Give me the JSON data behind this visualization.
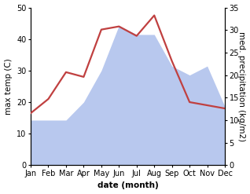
{
  "months": [
    "Jan",
    "Feb",
    "Mar",
    "Apr",
    "May",
    "Jun",
    "Jul",
    "Aug",
    "Sep",
    "Oct",
    "Nov",
    "Dec"
  ],
  "x": [
    0,
    1,
    2,
    3,
    4,
    5,
    6,
    7,
    8,
    9,
    10,
    11
  ],
  "max_temp": [
    16.5,
    21,
    29.5,
    28,
    43,
    44,
    41,
    47.5,
    33,
    20,
    19,
    18
  ],
  "precipitation": [
    10,
    10,
    10,
    14,
    21,
    31,
    29,
    29,
    22,
    20,
    22,
    13
  ],
  "temp_color": "#c04040",
  "precip_color": "#b8c8ee",
  "left_ylim": [
    0,
    50
  ],
  "right_ylim": [
    0,
    35
  ],
  "left_yticks": [
    0,
    10,
    20,
    30,
    40,
    50
  ],
  "right_yticks": [
    0,
    5,
    10,
    15,
    20,
    25,
    30,
    35
  ],
  "left_ylabel": "max temp (C)",
  "right_ylabel": "med. precipitation (kg/m2)",
  "xlabel": "date (month)",
  "label_fontsize": 7.5,
  "tick_fontsize": 7,
  "line_width": 1.6,
  "bg_color": "#ffffff"
}
